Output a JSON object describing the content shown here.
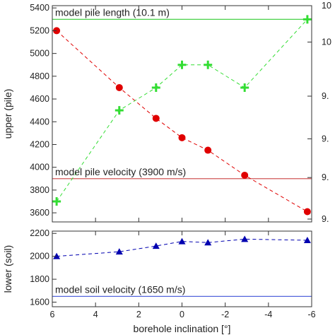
{
  "chart_data": [
    {
      "type": "line",
      "panel": "upper",
      "ylabel": "upper (pile)",
      "ylim": [
        3520,
        5420
      ],
      "xlim": [
        6,
        -6
      ],
      "yticks": [
        3600,
        3800,
        4000,
        4200,
        4400,
        4600,
        4800,
        5000,
        5200,
        5400
      ],
      "right_ytick_labels": [
        "10",
        "10",
        "9.",
        "9.",
        "9.",
        "9."
      ],
      "right_ytick_values": [
        5420,
        5100,
        4625,
        4250,
        3910,
        3545
      ],
      "series": [
        {
          "marker": "circle",
          "color": "#e00000",
          "x": [
            5.8,
            2.9,
            1.2,
            0,
            -1.2,
            -2.9,
            -5.8
          ],
          "y": [
            5200,
            4700,
            4430,
            4260,
            4150,
            3930,
            3610
          ]
        },
        {
          "marker": "plus",
          "color": "#33dd33",
          "x": [
            5.8,
            2.9,
            1.2,
            0,
            -1.2,
            -2.9,
            -5.8
          ],
          "y": [
            3700,
            4500,
            4700,
            4900,
            4900,
            4700,
            5300
          ]
        }
      ],
      "reference_lines": [
        {
          "label": "model pile length (10.1 m)",
          "y": 5300,
          "color": "#33cc33"
        },
        {
          "label": "model pile velocity (3900 m/s)",
          "y": 3900,
          "color": "#cc4444"
        }
      ]
    },
    {
      "type": "line",
      "panel": "lower",
      "ylabel": "lower (soil)",
      "xlabel": "borehole inclination [°]",
      "ylim": [
        1560,
        2220
      ],
      "xlim": [
        6,
        -6
      ],
      "yticks": [
        1600,
        1800,
        2000,
        2200
      ],
      "xticks": [
        6,
        4,
        2,
        0,
        -2,
        -4,
        -6
      ],
      "series": [
        {
          "marker": "triangle",
          "color": "#0000b0",
          "x": [
            5.8,
            2.9,
            1.2,
            0,
            -1.2,
            -2.9,
            -5.8
          ],
          "y": [
            2000,
            2040,
            2090,
            2130,
            2120,
            2150,
            2140
          ]
        }
      ],
      "reference_lines": [
        {
          "label": "model soil velocity (1650 m/s)",
          "y": 1650,
          "color": "#5566dd"
        }
      ]
    }
  ]
}
